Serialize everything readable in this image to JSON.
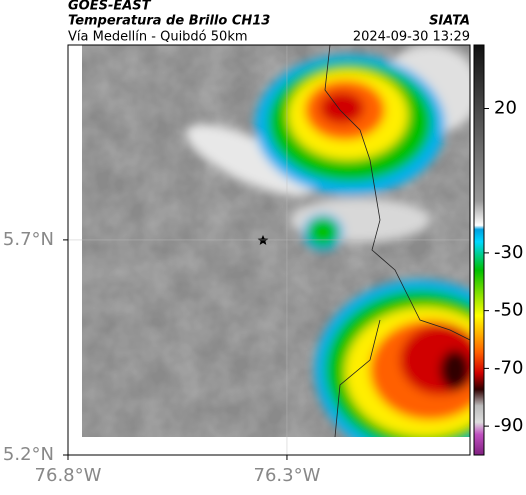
{
  "header": {
    "source": "GOES-EAST",
    "title": "Temperatura de Brillo CH13",
    "org": "SIATA",
    "subtitle": "Vía Medellín - Quibdó 50km",
    "timestamp": "2024-09-30 13:29"
  },
  "map": {
    "xlim": [
      -76.8,
      -75.882
    ],
    "ylim": [
      5.2,
      6.153
    ],
    "xticks": [
      {
        "value": -76.8,
        "label": "76.8°W"
      },
      {
        "value": -76.3,
        "label": "76.3°W"
      }
    ],
    "yticks": [
      {
        "value": 5.7,
        "label": "5.7°N"
      },
      {
        "value": 5.2,
        "label": "5.2°N"
      }
    ]
  },
  "colorbar": {
    "ylim": [
      -100,
      42
    ],
    "yticks": [
      20,
      -30,
      -50,
      -70,
      -90
    ]
  }
}
